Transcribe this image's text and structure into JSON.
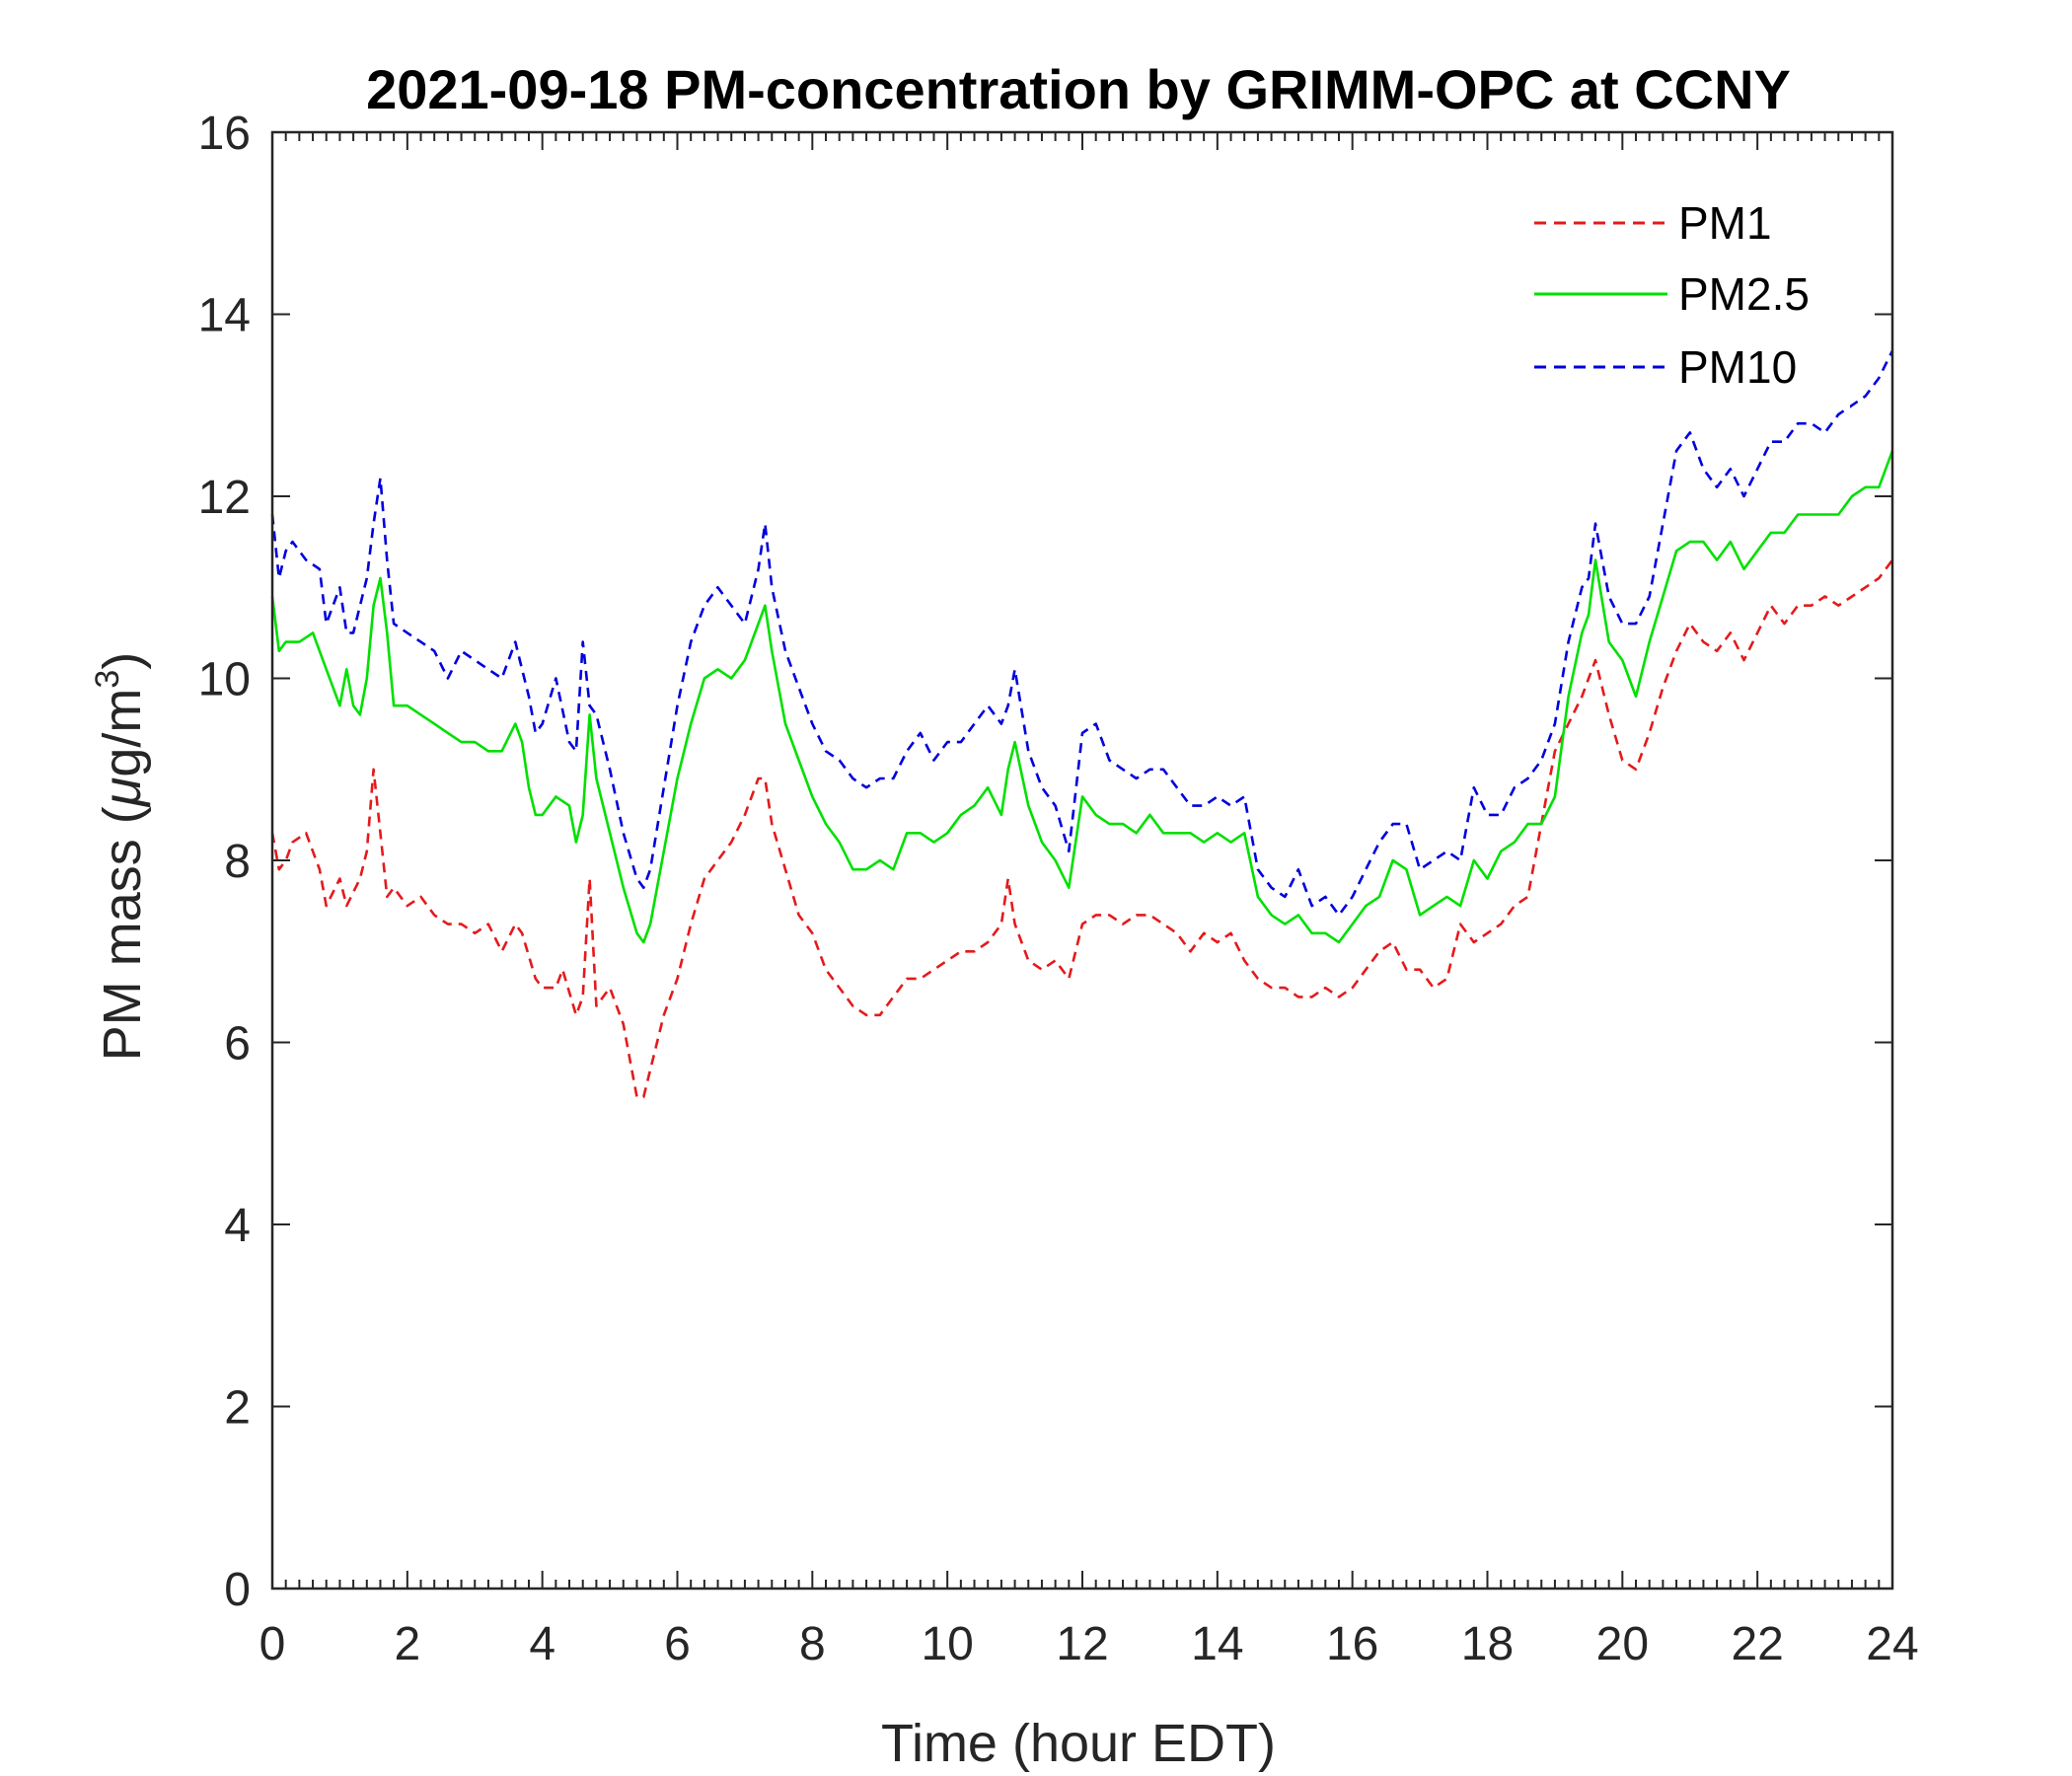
{
  "chart_data": {
    "type": "line",
    "title": "2021-09-18 PM-concentration by GRIMM-OPC at CCNY",
    "xlabel": "Time (hour EDT)",
    "ylabel_main": "PM mass (",
    "ylabel_mu": "μ",
    "ylabel_unit": "g/m",
    "ylabel_sup": "3",
    "ylabel_close": ")",
    "xlim": [
      0,
      24
    ],
    "ylim": [
      0,
      16
    ],
    "xticks": [
      0,
      2,
      4,
      6,
      8,
      10,
      12,
      14,
      16,
      18,
      20,
      22,
      24
    ],
    "yticks": [
      0,
      2,
      4,
      6,
      8,
      10,
      12,
      14,
      16
    ],
    "grid": false,
    "legend_position": "top-right",
    "series": [
      {
        "name": "PM1",
        "color": "#e41a1c",
        "dash": "dashed",
        "x": [
          0,
          0.1,
          0.2,
          0.3,
          0.5,
          0.7,
          0.8,
          1.0,
          1.1,
          1.3,
          1.4,
          1.5,
          1.6,
          1.7,
          1.8,
          2.0,
          2.2,
          2.4,
          2.6,
          2.8,
          3.0,
          3.2,
          3.4,
          3.6,
          3.7,
          3.9,
          4.0,
          4.2,
          4.3,
          4.5,
          4.6,
          4.7,
          4.8,
          5.0,
          5.1,
          5.2,
          5.3,
          5.4,
          5.5,
          5.6,
          5.8,
          6.0,
          6.2,
          6.4,
          6.6,
          6.8,
          7.0,
          7.2,
          7.3,
          7.4,
          7.6,
          7.8,
          8.0,
          8.2,
          8.4,
          8.6,
          8.8,
          9.0,
          9.2,
          9.4,
          9.6,
          9.8,
          10.0,
          10.2,
          10.4,
          10.6,
          10.8,
          10.9,
          11.0,
          11.2,
          11.4,
          11.6,
          11.8,
          12.0,
          12.2,
          12.4,
          12.6,
          12.8,
          13.0,
          13.2,
          13.4,
          13.6,
          13.8,
          14.0,
          14.2,
          14.4,
          14.6,
          14.8,
          15.0,
          15.2,
          15.4,
          15.6,
          15.8,
          16.0,
          16.2,
          16.4,
          16.6,
          16.8,
          17.0,
          17.2,
          17.4,
          17.6,
          17.8,
          18.0,
          18.2,
          18.4,
          18.6,
          18.8,
          19.0,
          19.2,
          19.4,
          19.6,
          19.8,
          20.0,
          20.2,
          20.4,
          20.6,
          20.8,
          21.0,
          21.2,
          21.4,
          21.6,
          21.8,
          22.0,
          22.2,
          22.4,
          22.6,
          22.8,
          23.0,
          23.2,
          23.4,
          23.6,
          23.8,
          24.0
        ],
        "y": [
          8.3,
          7.9,
          8.0,
          8.2,
          8.3,
          7.9,
          7.5,
          7.8,
          7.5,
          7.8,
          8.1,
          9.0,
          8.3,
          7.6,
          7.7,
          7.5,
          7.6,
          7.4,
          7.3,
          7.3,
          7.2,
          7.3,
          7.0,
          7.3,
          7.2,
          6.7,
          6.6,
          6.6,
          6.8,
          6.3,
          6.5,
          7.8,
          6.4,
          6.6,
          6.4,
          6.2,
          5.8,
          5.4,
          5.4,
          5.7,
          6.3,
          6.7,
          7.3,
          7.8,
          8.0,
          8.2,
          8.5,
          8.9,
          8.9,
          8.4,
          7.9,
          7.4,
          7.2,
          6.8,
          6.6,
          6.4,
          6.3,
          6.3,
          6.5,
          6.7,
          6.7,
          6.8,
          6.9,
          7.0,
          7.0,
          7.1,
          7.3,
          7.8,
          7.3,
          6.9,
          6.8,
          6.9,
          6.7,
          7.3,
          7.4,
          7.4,
          7.3,
          7.4,
          7.4,
          7.3,
          7.2,
          7.0,
          7.2,
          7.1,
          7.2,
          6.9,
          6.7,
          6.6,
          6.6,
          6.5,
          6.5,
          6.6,
          6.5,
          6.6,
          6.8,
          7.0,
          7.1,
          6.8,
          6.8,
          6.6,
          6.7,
          7.3,
          7.1,
          7.2,
          7.3,
          7.5,
          7.6,
          8.4,
          9.2,
          9.5,
          9.8,
          10.2,
          9.6,
          9.1,
          9.0,
          9.4,
          9.9,
          10.3,
          10.6,
          10.4,
          10.3,
          10.5,
          10.2,
          10.5,
          10.8,
          10.6,
          10.8,
          10.8,
          10.9,
          10.8,
          10.9,
          11.0,
          11.1,
          11.3
        ]
      },
      {
        "name": "PM2.5",
        "color": "#00e000",
        "dash": "solid",
        "x": [
          0,
          0.1,
          0.2,
          0.4,
          0.6,
          0.8,
          1.0,
          1.1,
          1.2,
          1.3,
          1.4,
          1.5,
          1.6,
          1.7,
          1.8,
          2.0,
          2.2,
          2.4,
          2.6,
          2.8,
          3.0,
          3.2,
          3.4,
          3.6,
          3.7,
          3.8,
          3.9,
          4.0,
          4.2,
          4.4,
          4.5,
          4.6,
          4.7,
          4.8,
          5.0,
          5.2,
          5.4,
          5.5,
          5.6,
          5.8,
          6.0,
          6.2,
          6.4,
          6.6,
          6.8,
          7.0,
          7.2,
          7.3,
          7.4,
          7.6,
          7.8,
          8.0,
          8.2,
          8.4,
          8.6,
          8.8,
          9.0,
          9.2,
          9.4,
          9.6,
          9.8,
          10.0,
          10.2,
          10.4,
          10.6,
          10.8,
          10.9,
          11.0,
          11.2,
          11.4,
          11.6,
          11.8,
          12.0,
          12.2,
          12.4,
          12.6,
          12.8,
          13.0,
          13.2,
          13.4,
          13.6,
          13.8,
          14.0,
          14.2,
          14.4,
          14.6,
          14.8,
          15.0,
          15.2,
          15.4,
          15.6,
          15.8,
          16.0,
          16.2,
          16.4,
          16.6,
          16.8,
          17.0,
          17.2,
          17.4,
          17.6,
          17.8,
          18.0,
          18.2,
          18.4,
          18.6,
          18.8,
          19.0,
          19.2,
          19.4,
          19.5,
          19.6,
          19.8,
          20.0,
          20.2,
          20.4,
          20.6,
          20.8,
          21.0,
          21.2,
          21.4,
          21.6,
          21.8,
          22.0,
          22.2,
          22.4,
          22.6,
          22.8,
          23.0,
          23.2,
          23.4,
          23.6,
          23.8,
          24.0
        ],
        "y": [
          10.9,
          10.3,
          10.4,
          10.4,
          10.5,
          10.1,
          9.7,
          10.1,
          9.7,
          9.6,
          10.0,
          10.8,
          11.1,
          10.5,
          9.7,
          9.7,
          9.6,
          9.5,
          9.4,
          9.3,
          9.3,
          9.2,
          9.2,
          9.5,
          9.3,
          8.8,
          8.5,
          8.5,
          8.7,
          8.6,
          8.2,
          8.5,
          9.6,
          8.9,
          8.3,
          7.7,
          7.2,
          7.1,
          7.3,
          8.1,
          8.9,
          9.5,
          10.0,
          10.1,
          10.0,
          10.2,
          10.6,
          10.8,
          10.3,
          9.5,
          9.1,
          8.7,
          8.4,
          8.2,
          7.9,
          7.9,
          8.0,
          7.9,
          8.3,
          8.3,
          8.2,
          8.3,
          8.5,
          8.6,
          8.8,
          8.5,
          9.0,
          9.3,
          8.6,
          8.2,
          8.0,
          7.7,
          8.7,
          8.5,
          8.4,
          8.4,
          8.3,
          8.5,
          8.3,
          8.3,
          8.3,
          8.2,
          8.3,
          8.2,
          8.3,
          7.6,
          7.4,
          7.3,
          7.4,
          7.2,
          7.2,
          7.1,
          7.3,
          7.5,
          7.6,
          8.0,
          7.9,
          7.4,
          7.5,
          7.6,
          7.5,
          8.0,
          7.8,
          8.1,
          8.2,
          8.4,
          8.4,
          8.7,
          9.8,
          10.5,
          10.7,
          11.3,
          10.4,
          10.2,
          9.8,
          10.4,
          10.9,
          11.4,
          11.5,
          11.5,
          11.3,
          11.5,
          11.2,
          11.4,
          11.6,
          11.6,
          11.8,
          11.8,
          11.8,
          11.8,
          12.0,
          12.1,
          12.1,
          12.5
        ]
      },
      {
        "name": "PM10",
        "color": "#0000dd",
        "dash": "dashed",
        "x": [
          0,
          0.1,
          0.2,
          0.3,
          0.5,
          0.7,
          0.8,
          1.0,
          1.1,
          1.2,
          1.4,
          1.5,
          1.6,
          1.7,
          1.8,
          2.0,
          2.2,
          2.4,
          2.6,
          2.8,
          3.0,
          3.2,
          3.4,
          3.6,
          3.7,
          3.8,
          3.9,
          4.0,
          4.2,
          4.4,
          4.5,
          4.6,
          4.7,
          4.8,
          5.0,
          5.2,
          5.4,
          5.5,
          5.6,
          5.8,
          6.0,
          6.2,
          6.4,
          6.6,
          6.8,
          7.0,
          7.2,
          7.3,
          7.4,
          7.6,
          7.8,
          8.0,
          8.2,
          8.4,
          8.6,
          8.8,
          9.0,
          9.2,
          9.4,
          9.6,
          9.8,
          10.0,
          10.2,
          10.4,
          10.6,
          10.8,
          10.9,
          11.0,
          11.2,
          11.4,
          11.6,
          11.8,
          12.0,
          12.2,
          12.4,
          12.6,
          12.8,
          13.0,
          13.2,
          13.4,
          13.6,
          13.8,
          14.0,
          14.2,
          14.4,
          14.6,
          14.8,
          15.0,
          15.2,
          15.4,
          15.6,
          15.8,
          16.0,
          16.2,
          16.4,
          16.6,
          16.8,
          17.0,
          17.2,
          17.4,
          17.6,
          17.8,
          18.0,
          18.2,
          18.4,
          18.6,
          18.8,
          19.0,
          19.2,
          19.4,
          19.5,
          19.6,
          19.8,
          20.0,
          20.2,
          20.4,
          20.6,
          20.8,
          21.0,
          21.2,
          21.4,
          21.6,
          21.8,
          22.0,
          22.2,
          22.4,
          22.6,
          22.8,
          23.0,
          23.2,
          23.4,
          23.6,
          23.8,
          24.0
        ],
        "y": [
          11.8,
          11.1,
          11.4,
          11.5,
          11.3,
          11.2,
          10.6,
          11.0,
          10.5,
          10.5,
          11.1,
          11.7,
          12.2,
          11.3,
          10.6,
          10.5,
          10.4,
          10.3,
          10.0,
          10.3,
          10.2,
          10.1,
          10.0,
          10.4,
          10.1,
          9.8,
          9.4,
          9.5,
          10.0,
          9.3,
          9.2,
          10.4,
          9.7,
          9.6,
          9.0,
          8.3,
          7.8,
          7.7,
          7.9,
          8.8,
          9.7,
          10.4,
          10.8,
          11.0,
          10.8,
          10.6,
          11.2,
          11.7,
          11.0,
          10.3,
          9.9,
          9.5,
          9.2,
          9.1,
          8.9,
          8.8,
          8.9,
          8.9,
          9.2,
          9.4,
          9.1,
          9.3,
          9.3,
          9.5,
          9.7,
          9.5,
          9.7,
          10.1,
          9.2,
          8.8,
          8.6,
          8.1,
          9.4,
          9.5,
          9.1,
          9.0,
          8.9,
          9.0,
          9.0,
          8.8,
          8.6,
          8.6,
          8.7,
          8.6,
          8.7,
          7.9,
          7.7,
          7.6,
          7.9,
          7.5,
          7.6,
          7.4,
          7.6,
          7.9,
          8.2,
          8.4,
          8.4,
          7.9,
          8.0,
          8.1,
          8.0,
          8.8,
          8.5,
          8.5,
          8.8,
          8.9,
          9.1,
          9.5,
          10.4,
          11.0,
          11.1,
          11.7,
          10.9,
          10.6,
          10.6,
          10.9,
          11.7,
          12.5,
          12.7,
          12.3,
          12.1,
          12.3,
          12.0,
          12.3,
          12.6,
          12.6,
          12.8,
          12.8,
          12.7,
          12.9,
          13.0,
          13.1,
          13.3,
          13.6
        ]
      }
    ]
  }
}
